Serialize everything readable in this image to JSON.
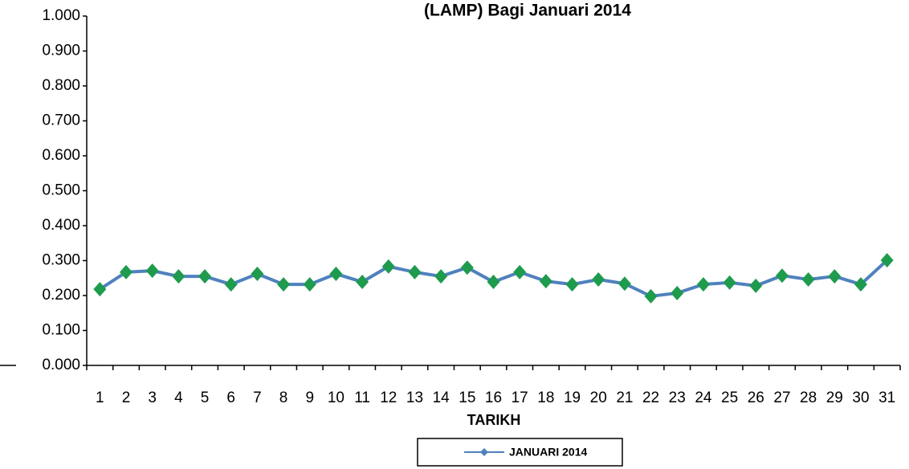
{
  "chart_data": {
    "type": "line",
    "title": "(LAMP) Bagi Januari 2014",
    "x_label": "TARIKH",
    "categories": [
      "1",
      "2",
      "3",
      "4",
      "5",
      "6",
      "7",
      "8",
      "9",
      "10",
      "11",
      "12",
      "13",
      "14",
      "15",
      "16",
      "17",
      "18",
      "19",
      "20",
      "21",
      "22",
      "23",
      "24",
      "25",
      "26",
      "27",
      "28",
      "29",
      "30",
      "31"
    ],
    "series": [
      {
        "name": "JANUARI 2014",
        "color": "#4f81bd",
        "marker_color": "#1e9b4c",
        "values": [
          0.218,
          0.267,
          0.271,
          0.255,
          0.255,
          0.232,
          0.262,
          0.232,
          0.232,
          0.262,
          0.239,
          0.283,
          0.267,
          0.255,
          0.28,
          0.239,
          0.267,
          0.241,
          0.232,
          0.246,
          0.234,
          0.198,
          0.207,
          0.232,
          0.237,
          0.228,
          0.257,
          0.246,
          0.255,
          0.232,
          0.301
        ]
      }
    ],
    "ylim": [
      0,
      1
    ],
    "yticks": [
      {
        "value": 0,
        "label": "0.000"
      },
      {
        "value": 0.1,
        "label": "0.100"
      },
      {
        "value": 0.2,
        "label": "0.200"
      },
      {
        "value": 0.3,
        "label": "0.300"
      },
      {
        "value": 0.4,
        "label": "0.400"
      },
      {
        "value": 0.5,
        "label": "0.500"
      },
      {
        "value": 0.6,
        "label": "0.600"
      },
      {
        "value": 0.7,
        "label": "0.700"
      },
      {
        "value": 0.8,
        "label": "0.800"
      },
      {
        "value": 0.9,
        "label": "0.900"
      },
      {
        "value": 1,
        "label": "1.000"
      }
    ],
    "grid": false,
    "legend": "bottom"
  }
}
